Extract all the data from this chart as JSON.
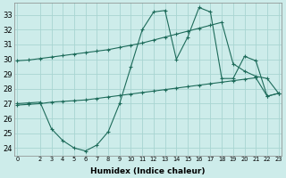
{
  "xlabel": "Humidex (Indice chaleur)",
  "x": [
    0,
    1,
    2,
    3,
    4,
    5,
    6,
    7,
    8,
    9,
    10,
    11,
    12,
    13,
    14,
    15,
    16,
    17,
    18,
    19,
    20,
    21,
    22,
    23
  ],
  "line1": [
    29.9,
    29.95,
    30.05,
    30.15,
    30.25,
    30.35,
    30.45,
    30.55,
    30.65,
    30.8,
    30.95,
    31.1,
    31.3,
    31.5,
    31.7,
    31.9,
    32.1,
    32.3,
    32.5,
    29.7,
    29.2,
    28.85,
    28.7,
    27.7
  ],
  "line2": [
    27.0,
    27.05,
    27.1,
    25.3,
    24.5,
    24.0,
    23.8,
    24.2,
    25.1,
    27.0,
    29.5,
    32.0,
    33.2,
    33.3,
    30.0,
    31.5,
    33.5,
    33.2,
    28.7,
    28.7,
    30.2,
    29.9,
    27.5,
    27.7
  ],
  "line3": [
    26.9,
    26.95,
    27.0,
    27.1,
    27.15,
    27.2,
    27.25,
    27.35,
    27.45,
    27.55,
    27.65,
    27.75,
    27.85,
    27.95,
    28.05,
    28.15,
    28.25,
    28.35,
    28.45,
    28.55,
    28.65,
    28.75,
    27.5,
    27.7
  ],
  "line_color": "#1d6b5a",
  "bg_color": "#cdecea",
  "grid_color": "#a8d5d2",
  "ylim": [
    23.5,
    33.8
  ],
  "yticks": [
    24,
    25,
    26,
    27,
    28,
    29,
    30,
    31,
    32,
    33
  ],
  "xticks": [
    0,
    2,
    3,
    4,
    5,
    6,
    7,
    8,
    9,
    10,
    11,
    12,
    13,
    14,
    15,
    16,
    17,
    18,
    19,
    20,
    21,
    22,
    23
  ]
}
